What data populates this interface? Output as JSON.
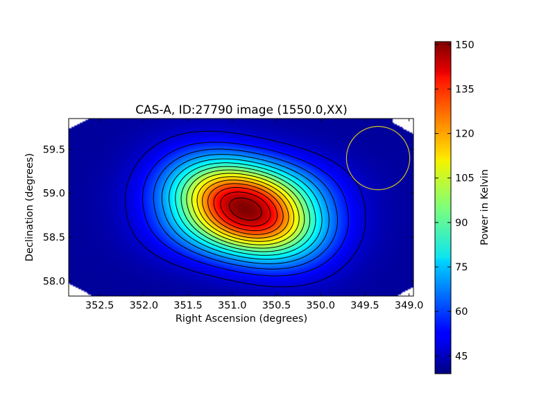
{
  "chart_data": {
    "type": "heatmap",
    "title": "CAS-A, ID:27790 image (1550.0,XX)",
    "xlabel": "Right Ascension (degrees)",
    "ylabel": "Declination (degrees)",
    "xlim": [
      352.85,
      348.95
    ],
    "ylim": [
      57.83,
      59.85
    ],
    "x_axis_reversed": true,
    "x_ticks": [
      352.5,
      352.0,
      351.5,
      351.0,
      350.5,
      350.0,
      349.5,
      349.0
    ],
    "x_tick_labels": [
      "352.5",
      "352.0",
      "351.5",
      "351.0",
      "350.5",
      "350.0",
      "349.5",
      "349.0"
    ],
    "y_ticks": [
      58.0,
      58.5,
      59.0,
      59.5
    ],
    "y_tick_labels": [
      "58.0",
      "58.5",
      "59.0",
      "59.5"
    ],
    "colormap": "jet",
    "colorbar": {
      "label": "Power in Kelvin",
      "range": [
        39,
        151
      ],
      "ticks": [
        45,
        60,
        75,
        90,
        105,
        120,
        135,
        150
      ],
      "tick_labels": [
        "45",
        "60",
        "75",
        "90",
        "105",
        "120",
        "135",
        "150"
      ]
    },
    "peak": {
      "ra": 350.85,
      "dec": 58.82,
      "value": 151
    },
    "background_value": 42,
    "contour_interval": 7,
    "contour_color": "#000000",
    "beam_circle": {
      "ra": 349.35,
      "dec": 59.4,
      "radius_deg": 0.36,
      "color": "#d4c21c"
    },
    "grid": false
  }
}
